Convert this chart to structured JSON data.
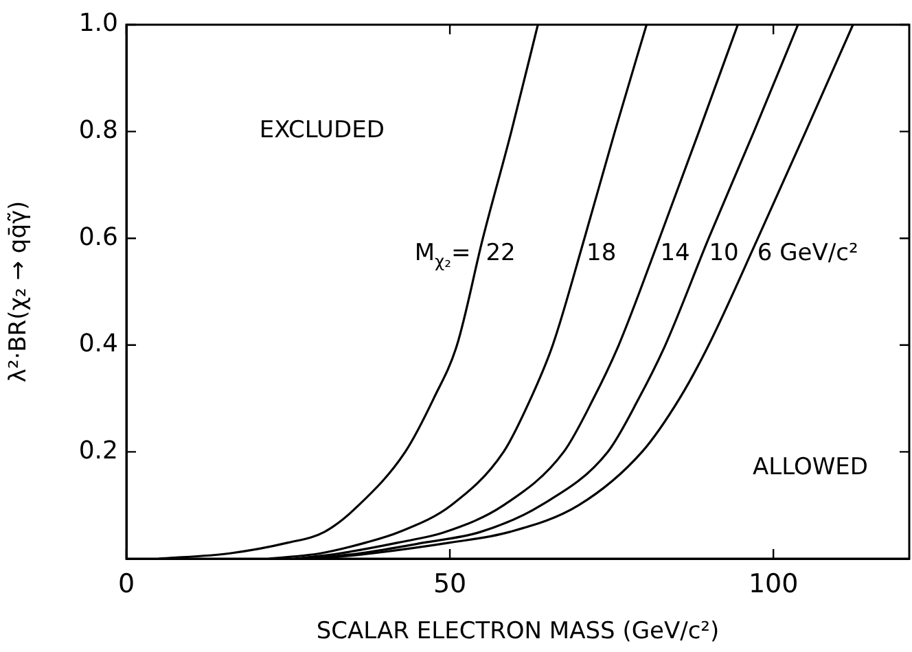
{
  "chart_data": {
    "type": "line",
    "xlabel": "SCALAR ELECTRON MASS (GeV/c²)",
    "ylabel": "λ²·BR(χ₂ → qq̄γ̃)",
    "xlim": [
      0,
      121
    ],
    "xticks": [
      0,
      50,
      100
    ],
    "ylim": [
      0,
      1
    ],
    "yticks": [
      0.2,
      0.4,
      0.6,
      0.8,
      {
        "value": 1,
        "label": "1.0"
      }
    ],
    "grid": false,
    "marker": "none",
    "line_style": "solid",
    "annotations": [
      "EXCLUDED",
      "ALLOWED",
      "M$_{χ₂}$="
    ],
    "series": [
      {
        "name": "22",
        "color": "#000000",
        "x": [
          5,
          16,
          25,
          30.6,
          35.9,
          43.1,
          47.5,
          51.1,
          55.1,
          59.5,
          63.6
        ],
        "values": [
          0,
          0.01,
          0.03,
          0.05,
          0.1,
          0.2,
          0.3,
          0.4,
          0.6,
          0.8,
          1
        ]
      },
      {
        "name": "18",
        "color": "#000000",
        "x": [
          22,
          30,
          37,
          42.2,
          50.2,
          58.3,
          62.5,
          65.9,
          70.8,
          75.5,
          80.4
        ],
        "values": [
          0,
          0.01,
          0.03,
          0.05,
          0.1,
          0.2,
          0.3,
          0.4,
          0.6,
          0.8,
          1
        ]
      },
      {
        "name": "14",
        "color": "#000000",
        "x": [
          26,
          33,
          42,
          49.3,
          58.3,
          67.6,
          72.2,
          76.1,
          82.4,
          88.5,
          94.5
        ],
        "values": [
          0,
          0.01,
          0.03,
          0.05,
          0.1,
          0.2,
          0.3,
          0.4,
          0.6,
          0.8,
          1
        ]
      },
      {
        "name": "10",
        "color": "#000000",
        "x": [
          28,
          36,
          46,
          54.7,
          64.1,
          74.4,
          79.2,
          83.3,
          90,
          97,
          103.8
        ],
        "values": [
          0,
          0.01,
          0.03,
          0.05,
          0.1,
          0.2,
          0.3,
          0.4,
          0.6,
          0.8,
          1
        ]
      },
      {
        "name": "6 GeV/c²",
        "color": "#000000",
        "x": [
          30,
          38,
          50,
          59.2,
          69.9,
          79.7,
          85.5,
          90,
          97.6,
          105,
          112.3
        ],
        "values": [
          0,
          0.01,
          0.03,
          0.05,
          0.1,
          0.2,
          0.3,
          0.4,
          0.6,
          0.8,
          1
        ]
      }
    ]
  }
}
